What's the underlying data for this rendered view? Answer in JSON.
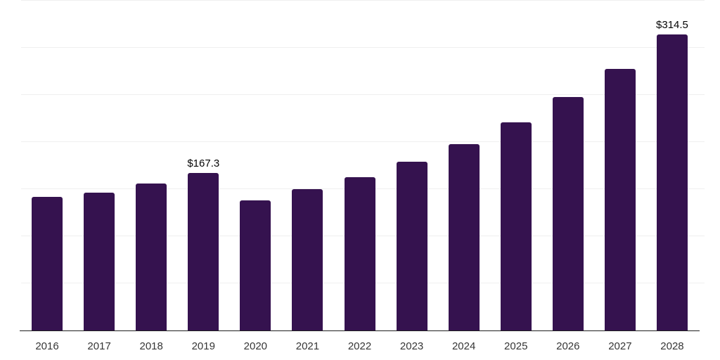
{
  "chart_data": {
    "type": "bar",
    "title": "",
    "xlabel": "",
    "ylabel": "",
    "categories": [
      "2016",
      "2017",
      "2018",
      "2019",
      "2020",
      "2021",
      "2022",
      "2023",
      "2024",
      "2025",
      "2026",
      "2027",
      "2028"
    ],
    "values": [
      142.2,
      146.5,
      156.1,
      167.3,
      138.1,
      149.9,
      163.0,
      179.3,
      198.0,
      220.9,
      247.5,
      277.8,
      314.5
    ],
    "data_labels": [
      null,
      null,
      null,
      "$167.3",
      null,
      null,
      null,
      null,
      null,
      null,
      null,
      null,
      "$314.5"
    ],
    "ylim": [
      0,
      350
    ],
    "gridline_step": 50,
    "grid": true,
    "legend": false,
    "y_axis_labels_visible": false,
    "colors": {
      "bar": "#35124f",
      "gridline": "#efefef",
      "axis_line": "#1f1f1f",
      "value_label": "#050505",
      "tick_label": "#363636",
      "background": "#ffffff"
    }
  }
}
